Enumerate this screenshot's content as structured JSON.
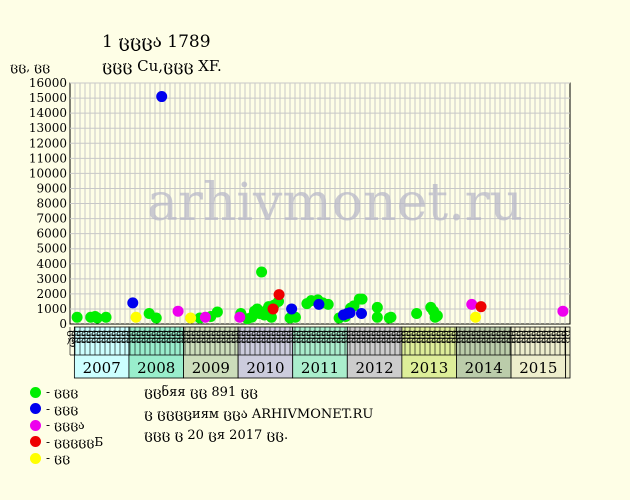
{
  "header": {
    "title": "1 ცცცა 1789",
    "subtitle": "ცცც Cu,ცცც XF."
  },
  "info": {
    "line1": "ცცნяя ცც 891 ცც",
    "line2": "ც ცცცცиям ცცა ARHIVMONET.RU",
    "line3": "ცცც ც 20 ცя 2017 ცც."
  },
  "legend": [
    {
      "label": "- ცცც",
      "color": "#00ee00"
    },
    {
      "label": "- ცცც",
      "color": "#0000ee"
    },
    {
      "label": "- ცცცა",
      "color": "#ee00ee"
    },
    {
      "label": "- ცცცცცБ",
      "color": "#ee0000"
    },
    {
      "label": "- ცც",
      "color": "#ffff00"
    }
  ],
  "chart_data": {
    "type": "scatter",
    "watermark": "arhivmonet.ru",
    "ylabel": "ცც, ცც",
    "ylim": [
      0,
      16000
    ],
    "yticks": [
      0,
      1000,
      2000,
      3000,
      4000,
      5000,
      6000,
      7000,
      8000,
      9000,
      10000,
      11000,
      12000,
      13000,
      14000,
      15000,
      16000
    ],
    "grid": true,
    "months": [
      "ცლ",
      "ცც",
      "ცც",
      "ცც",
      "ცც",
      "ცც",
      "ცც",
      "ცც",
      "ცც",
      "ცც",
      "ცც",
      "ცც",
      "ცც",
      "ცც",
      "ცც",
      "ცც",
      "ცც",
      "ცც",
      "ცც",
      "ცც",
      "ცც",
      "ცც",
      "ცც",
      "ცც",
      "ცც",
      "ცც",
      "ცც",
      "ცც",
      "ცც",
      "ცც",
      "ცც",
      "ცც",
      "ცც",
      "ცც",
      "ცც",
      "ცც",
      "ცც",
      "ცც",
      "ცც",
      "ცც",
      "ცც",
      "ცც",
      "ცც",
      "ცც",
      "ცც",
      "ცც",
      "ცც",
      "ცც",
      "ცც",
      "ცც",
      "ცც",
      "ცც",
      "ცც",
      "ცც",
      "ცც",
      "ცც",
      "ცც",
      "ცც",
      "ცც",
      "ცც",
      "ცც",
      "ცც",
      "ცც",
      "ცც",
      "ცც",
      "ცც",
      "ცც",
      "ცც",
      "ცც",
      "ცც",
      "ცც",
      "ცც",
      "ცც",
      "ცც",
      "ცც",
      "ცც",
      "ცც",
      "ცც",
      "ცც",
      "ცც",
      "ცც",
      "ცც",
      "ცც",
      "ცც",
      "ცც",
      "ცც",
      "ცც",
      "ცც",
      "ცც",
      "ცც",
      "ცც",
      "ცც",
      "ცც",
      "ცც",
      "ცც",
      "ცც",
      "ცც",
      "ცც",
      "ცც",
      "ცც"
    ],
    "years": [
      {
        "label": "2007",
        "start": 2007.0,
        "end": 2008.0,
        "color": "#ccffff"
      },
      {
        "label": "2008",
        "start": 2008.0,
        "end": 2009.0,
        "color": "#99eecc"
      },
      {
        "label": "2009",
        "start": 2009.0,
        "end": 2010.0,
        "color": "#ccddbb"
      },
      {
        "label": "2010",
        "start": 2010.0,
        "end": 2011.0,
        "color": "#ccccdd"
      },
      {
        "label": "2011",
        "start": 2011.0,
        "end": 2012.0,
        "color": "#aaeecc"
      },
      {
        "label": "2012",
        "start": 2012.0,
        "end": 2013.0,
        "color": "#cccccc"
      },
      {
        "label": "2013",
        "start": 2013.0,
        "end": 2014.0,
        "color": "#ddee99"
      },
      {
        "label": "2014",
        "start": 2014.0,
        "end": 2015.0,
        "color": "#bbccaa"
      },
      {
        "label": "2015",
        "start": 2015.0,
        "end": 2016.0,
        "color": "#eeeecc"
      }
    ],
    "xlim": [
      2006.92,
      2016.08
    ],
    "series": [
      {
        "color": "#00ee00",
        "points": [
          [
            2007.05,
            450
          ],
          [
            2007.3,
            450
          ],
          [
            2007.38,
            500
          ],
          [
            2007.42,
            400
          ],
          [
            2007.58,
            450
          ],
          [
            2008.37,
            700
          ],
          [
            2008.5,
            400
          ],
          [
            2009.3,
            400
          ],
          [
            2009.5,
            500
          ],
          [
            2009.62,
            800
          ],
          [
            2010.05,
            700
          ],
          [
            2010.17,
            350
          ],
          [
            2010.25,
            450
          ],
          [
            2010.3,
            850
          ],
          [
            2010.35,
            1000
          ],
          [
            2010.39,
            700
          ],
          [
            2010.43,
            3450
          ],
          [
            2010.48,
            600
          ],
          [
            2010.52,
            900
          ],
          [
            2010.56,
            1150
          ],
          [
            2010.61,
            450
          ],
          [
            2010.66,
            1250
          ],
          [
            2010.74,
            1500
          ],
          [
            2010.95,
            400
          ],
          [
            2011.05,
            450
          ],
          [
            2011.26,
            1350
          ],
          [
            2011.34,
            1550
          ],
          [
            2011.46,
            1600
          ],
          [
            2011.55,
            1400
          ],
          [
            2011.65,
            1300
          ],
          [
            2011.85,
            400
          ],
          [
            2011.97,
            500
          ],
          [
            2012.06,
            1050
          ],
          [
            2012.12,
            1200
          ],
          [
            2012.22,
            1650
          ],
          [
            2012.27,
            1650
          ],
          [
            2012.55,
            1100
          ],
          [
            2012.55,
            450
          ],
          [
            2012.77,
            400
          ],
          [
            2012.8,
            450
          ],
          [
            2013.27,
            700
          ],
          [
            2013.53,
            1100
          ],
          [
            2013.58,
            850
          ],
          [
            2013.61,
            450
          ],
          [
            2013.65,
            550
          ]
        ]
      },
      {
        "color": "#0000ee",
        "points": [
          [
            2008.07,
            1400
          ],
          [
            2008.6,
            15100
          ],
          [
            2010.98,
            1000
          ],
          [
            2011.48,
            1300
          ],
          [
            2011.93,
            600
          ],
          [
            2012.0,
            700
          ],
          [
            2012.05,
            750
          ],
          [
            2012.26,
            700
          ]
        ]
      },
      {
        "color": "#ee00ee",
        "points": [
          [
            2008.9,
            850
          ],
          [
            2009.4,
            450
          ],
          [
            2010.03,
            450
          ],
          [
            2014.28,
            1300
          ],
          [
            2015.95,
            850
          ]
        ]
      },
      {
        "color": "#ee0000",
        "points": [
          [
            2010.64,
            1000
          ],
          [
            2010.75,
            1950
          ],
          [
            2014.45,
            1150
          ]
        ]
      },
      {
        "color": "#ffff00",
        "points": [
          [
            2008.13,
            450
          ],
          [
            2009.13,
            400
          ],
          [
            2014.35,
            450
          ]
        ]
      }
    ]
  }
}
